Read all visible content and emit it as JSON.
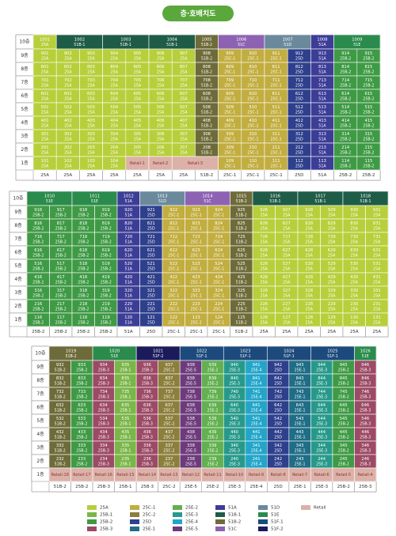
{
  "title": "층·호배치도",
  "floors": [
    "10층",
    "9층",
    "8층",
    "7층",
    "6층",
    "5층",
    "4층",
    "3층",
    "2층",
    "1층"
  ],
  "legend": [
    {
      "name": "25A",
      "color": "#b7cf3b"
    },
    {
      "name": "25B-1",
      "color": "#7ab648"
    },
    {
      "name": "25B-2",
      "color": "#3f9a45"
    },
    {
      "name": "25B-3",
      "color": "#9c4a66"
    },
    {
      "name": "25C-1",
      "color": "#c2ad3f"
    },
    {
      "name": "25C-2",
      "color": "#8c7f3c"
    },
    {
      "name": "25D",
      "color": "#2e3f8c"
    },
    {
      "name": "25E-1",
      "color": "#1f6d86"
    },
    {
      "name": "25E-2",
      "color": "#62b04f"
    },
    {
      "name": "25E-3",
      "color": "#27998a"
    },
    {
      "name": "25E-4",
      "color": "#22a5c9"
    },
    {
      "name": "25E-5",
      "color": "#6d3b7c"
    },
    {
      "name": "51A",
      "color": "#3c3d96"
    },
    {
      "name": "51B-1",
      "color": "#1e5c48"
    },
    {
      "name": "51B-2",
      "color": "#6e6b3a"
    },
    {
      "name": "51C",
      "color": "#8d62b3"
    },
    {
      "name": "51D",
      "color": "#6a8a9c"
    },
    {
      "name": "51E",
      "color": "#2a8b4c"
    },
    {
      "name": "51F-1",
      "color": "#1c4a7c"
    },
    {
      "name": "51F-2",
      "color": "#1b1b5c"
    },
    {
      "name": "Retail",
      "color": "#dcb1a8"
    }
  ],
  "blocks": [
    {
      "top": [
        {
          "unit": 1001,
          "type": "25A",
          "span": 1
        },
        {
          "unit": 1002,
          "type": "51B-1",
          "span": 2
        },
        {
          "unit": 1003,
          "type": "51B-1",
          "span": 2
        },
        {
          "unit": 1004,
          "type": "51B-1",
          "span": 2
        },
        {
          "unit": 1005,
          "type": "51B-2",
          "span": 1
        },
        {
          "unit": 1006,
          "type": "51C",
          "span": 2
        },
        {
          "unit": 1007,
          "type": "51D",
          "span": 2
        },
        {
          "unit": 1008,
          "type": "51A",
          "span": 1
        },
        {
          "unit": 1009,
          "type": "51E",
          "span": 2
        }
      ],
      "columns": [
        {
          "type": "25A",
          "units": [
            901,
            801,
            701,
            601,
            501,
            401,
            301,
            201
          ]
        },
        {
          "type": "25A",
          "units": [
            902,
            802,
            702,
            602,
            502,
            402,
            302,
            202
          ]
        },
        {
          "type": "25A",
          "units": [
            903,
            803,
            703,
            603,
            503,
            403,
            303,
            203
          ]
        },
        {
          "type": "25A",
          "units": [
            904,
            804,
            704,
            604,
            504,
            404,
            304,
            204
          ]
        },
        {
          "type": "25A",
          "units": [
            905,
            805,
            705,
            605,
            505,
            405,
            305,
            205
          ]
        },
        {
          "type": "25A",
          "units": [
            906,
            806,
            706,
            606,
            506,
            406,
            306,
            206
          ]
        },
        {
          "type": "25A",
          "units": [
            907,
            807,
            707,
            607,
            507,
            407,
            307,
            207
          ]
        },
        {
          "type": "51B-2",
          "units": [
            908,
            808,
            708,
            608,
            508,
            408,
            308,
            208
          ]
        },
        {
          "type": "25C-1",
          "units": [
            909,
            809,
            709,
            609,
            509,
            409,
            309,
            209
          ]
        },
        {
          "type": "25C-1",
          "units": [
            910,
            810,
            710,
            610,
            510,
            410,
            310,
            210
          ]
        },
        {
          "type": "25C-1",
          "units": [
            911,
            811,
            711,
            611,
            511,
            411,
            311,
            211
          ]
        },
        {
          "type": "25D",
          "units": [
            912,
            812,
            712,
            612,
            512,
            412,
            312,
            212
          ]
        },
        {
          "type": "51A",
          "units": [
            913,
            813,
            713,
            613,
            513,
            413,
            313,
            213
          ]
        },
        {
          "type": "25B-2",
          "units": [
            914,
            814,
            714,
            614,
            514,
            414,
            314,
            214
          ]
        },
        {
          "type": "25B-2",
          "units": [
            915,
            815,
            715,
            615,
            515,
            415,
            315,
            215
          ]
        }
      ],
      "ground": [
        {
          "unit": 101,
          "span": 1
        },
        {
          "unit": 102,
          "span": 1
        },
        {
          "unit": 103,
          "span": 1
        },
        {
          "unit": 104,
          "span": 1
        },
        {
          "label": "Retail-1",
          "span": 1
        },
        {
          "label": "Retail-2",
          "span": 1
        },
        {
          "label": "Retail-3",
          "span": 2
        },
        {
          "unit": 109,
          "span": 1
        },
        {
          "unit": 110,
          "span": 1
        },
        {
          "unit": 111,
          "span": 1
        },
        {
          "unit": 112,
          "span": 1
        },
        {
          "unit": 113,
          "span": 1
        },
        {
          "unit": 114,
          "span": 1
        },
        {
          "unit": 115,
          "span": 1
        }
      ]
    },
    {
      "top": [
        {
          "unit": 1010,
          "type": "51E",
          "span": 2
        },
        {
          "unit": 1011,
          "type": "51E",
          "span": 2
        },
        {
          "unit": 1012,
          "type": "51A",
          "span": 1
        },
        {
          "unit": 1013,
          "type": "51D",
          "span": 2
        },
        {
          "unit": 1014,
          "type": "51C",
          "span": 2
        },
        {
          "unit": 1015,
          "type": "51B-2",
          "span": 1
        },
        {
          "unit": 1016,
          "type": "51B-1",
          "span": 2
        },
        {
          "unit": 1017,
          "type": "51B-1",
          "span": 2
        },
        {
          "unit": 1018,
          "type": "51B-1",
          "span": 2
        }
      ],
      "columns": [
        {
          "type": "25B-2",
          "units": [
            916,
            816,
            716,
            616,
            516,
            416,
            316,
            216
          ]
        },
        {
          "type": "25B-2",
          "units": [
            917,
            817,
            717,
            617,
            517,
            417,
            317,
            217
          ]
        },
        {
          "type": "25B-2",
          "units": [
            918,
            818,
            718,
            618,
            518,
            418,
            318,
            218
          ]
        },
        {
          "type": "25B-2",
          "units": [
            919,
            819,
            719,
            619,
            519,
            419,
            319,
            219
          ]
        },
        {
          "type": "51A",
          "units": [
            920,
            820,
            720,
            620,
            520,
            420,
            320,
            220
          ]
        },
        {
          "type": "25D",
          "units": [
            921,
            821,
            721,
            621,
            521,
            421,
            321,
            221
          ]
        },
        {
          "type": "25C-1",
          "units": [
            922,
            822,
            722,
            622,
            522,
            422,
            322,
            222
          ]
        },
        {
          "type": "25C-1",
          "units": [
            923,
            823,
            723,
            623,
            523,
            423,
            323,
            223
          ]
        },
        {
          "type": "25C-1",
          "units": [
            924,
            824,
            724,
            624,
            524,
            424,
            324,
            224
          ]
        },
        {
          "type": "51B-2",
          "units": [
            925,
            825,
            725,
            625,
            525,
            425,
            325,
            225
          ]
        },
        {
          "type": "25A",
          "units": [
            926,
            826,
            726,
            626,
            526,
            426,
            326,
            226
          ]
        },
        {
          "type": "25A",
          "units": [
            927,
            827,
            727,
            627,
            527,
            427,
            327,
            227
          ]
        },
        {
          "type": "25A",
          "units": [
            928,
            828,
            728,
            628,
            528,
            428,
            328,
            228
          ]
        },
        {
          "type": "25A",
          "units": [
            929,
            829,
            729,
            629,
            529,
            429,
            329,
            229
          ]
        },
        {
          "type": "25A",
          "units": [
            930,
            830,
            730,
            630,
            530,
            430,
            330,
            230
          ]
        },
        {
          "type": "25A",
          "units": [
            931,
            831,
            731,
            631,
            531,
            431,
            331,
            231
          ]
        }
      ],
      "ground": [
        {
          "unit": 116,
          "span": 1
        },
        {
          "unit": 117,
          "span": 1
        },
        {
          "unit": 118,
          "span": 1
        },
        {
          "unit": 119,
          "span": 1
        },
        {
          "unit": 120,
          "span": 1
        },
        {
          "unit": 121,
          "span": 1
        },
        {
          "unit": 122,
          "span": 1
        },
        {
          "unit": 123,
          "span": 1
        },
        {
          "unit": 124,
          "span": 1
        },
        {
          "unit": 125,
          "span": 1
        },
        {
          "unit": 126,
          "span": 1
        },
        {
          "unit": 127,
          "span": 1
        },
        {
          "unit": 128,
          "span": 1
        },
        {
          "unit": 129,
          "span": 1
        },
        {
          "unit": 130,
          "span": 1
        },
        {
          "unit": 131,
          "span": 1
        }
      ]
    },
    {
      "top": [
        {
          "unit": 1019,
          "type": "51B-2",
          "span": 2
        },
        {
          "unit": 1020,
          "type": "51E",
          "span": 2
        },
        {
          "unit": 1021,
          "type": "51F-2",
          "span": 2
        },
        {
          "unit": 1022,
          "type": "51F-1",
          "span": 2
        },
        {
          "unit": 1023,
          "type": "51F-1",
          "span": 2
        },
        {
          "unit": 1024,
          "type": "51F-1",
          "span": 2
        },
        {
          "unit": 1025,
          "type": "51F-1",
          "span": 2
        },
        {
          "unit": 1026,
          "type": "51E",
          "span": 1
        }
      ],
      "columns": [
        {
          "type": "51B-2",
          "units": [
            932,
            832,
            732,
            632,
            532,
            432,
            332,
            232
          ]
        },
        {
          "type": "25B-2",
          "units": [
            933,
            833,
            733,
            633,
            533,
            433,
            333,
            233
          ]
        },
        {
          "type": "25B-3",
          "units": [
            934,
            834,
            734,
            634,
            534,
            434,
            334,
            234
          ]
        },
        {
          "type": "25B-1",
          "units": [
            935,
            835,
            735,
            635,
            535,
            435,
            335,
            235
          ]
        },
        {
          "type": "25B-3",
          "units": [
            936,
            836,
            736,
            636,
            536,
            436,
            336,
            236
          ]
        },
        {
          "type": "25C-2",
          "units": [
            937,
            837,
            737,
            637,
            537,
            437,
            337,
            237
          ]
        },
        {
          "type": "25E-5",
          "units": [
            938,
            838,
            738,
            638,
            538,
            438,
            338,
            238
          ]
        },
        {
          "type": "25E-2",
          "units": [
            939,
            839,
            739,
            639,
            539,
            439,
            339,
            239
          ]
        },
        {
          "type": "25E-3",
          "units": [
            940,
            840,
            740,
            640,
            540,
            440,
            340,
            240
          ]
        },
        {
          "type": "25E-4",
          "units": [
            941,
            841,
            741,
            641,
            541,
            441,
            341,
            241
          ]
        },
        {
          "type": "25D",
          "units": [
            942,
            842,
            742,
            642,
            542,
            442,
            342,
            242
          ]
        },
        {
          "type": "25E-1",
          "units": [
            943,
            843,
            743,
            643,
            543,
            443,
            343,
            243
          ]
        },
        {
          "type": "25E-3",
          "units": [
            944,
            844,
            744,
            644,
            544,
            444,
            344,
            244
          ]
        },
        {
          "type": "25B-2",
          "units": [
            945,
            845,
            745,
            645,
            545,
            445,
            345,
            245
          ]
        },
        {
          "type": "25B-3",
          "units": [
            946,
            846,
            746,
            646,
            546,
            446,
            346,
            246
          ]
        }
      ],
      "ground": [
        {
          "label": "Retail-18",
          "span": 1
        },
        {
          "label": "Retail-17",
          "span": 1
        },
        {
          "label": "Retail-16",
          "span": 1
        },
        {
          "label": "Retail-15",
          "span": 1
        },
        {
          "label": "Retail-14",
          "span": 1
        },
        {
          "label": "Retail-13",
          "span": 1
        },
        {
          "label": "Retail-12",
          "span": 1
        },
        {
          "label": "Retail-11",
          "span": 1
        },
        {
          "label": "Retail-10",
          "span": 1
        },
        {
          "label": "Retail-9",
          "span": 1
        },
        {
          "label": "Retail-8",
          "span": 1
        },
        {
          "label": "Retail-7",
          "span": 1
        },
        {
          "label": "Retail-6",
          "span": 1
        },
        {
          "label": "Retail-5",
          "span": 1
        },
        {
          "label": "Retail-4",
          "span": 1
        }
      ]
    }
  ]
}
